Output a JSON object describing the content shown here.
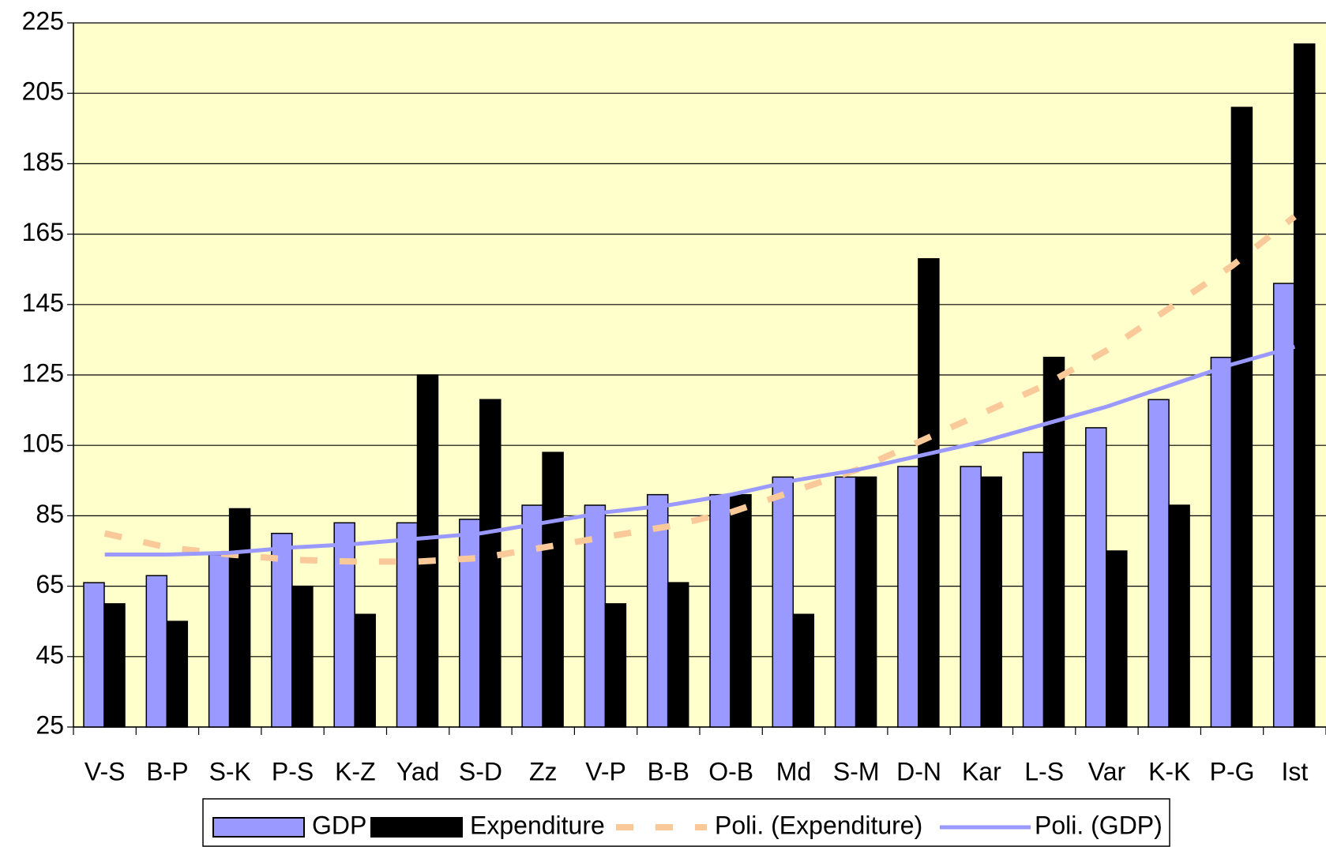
{
  "chart_data": {
    "type": "bar",
    "categories": [
      "V-S",
      "B-P",
      "S-K",
      "P-S",
      "K-Z",
      "Yad",
      "S-D",
      "Zz",
      "V-P",
      "B-B",
      "O-B",
      "Md",
      "S-M",
      "D-N",
      "Kar",
      "L-S",
      "Var",
      "K-K",
      "P-G",
      "Ist"
    ],
    "series": [
      {
        "name": "GDP",
        "type": "bar",
        "color": "#9999ff",
        "values": [
          66,
          68,
          74,
          80,
          83,
          83,
          84,
          88,
          88,
          91,
          91,
          96,
          96,
          99,
          99,
          103,
          110,
          118,
          130,
          151
        ]
      },
      {
        "name": "Expenditure",
        "type": "bar",
        "color": "#000000",
        "values": [
          60,
          55,
          87,
          65,
          57,
          125,
          118,
          103,
          60,
          66,
          91,
          57,
          96,
          158,
          96,
          130,
          75,
          88,
          201,
          219
        ]
      },
      {
        "name": "Poli. (Expenditure)",
        "type": "line",
        "dashed": true,
        "color": "#f9c99a",
        "values": [
          80,
          76,
          74,
          72.5,
          72,
          72,
          73,
          76,
          79,
          82,
          86,
          92,
          98,
          106,
          114,
          122,
          132,
          144,
          156,
          170
        ]
      },
      {
        "name": "Poli. (GDP)",
        "type": "line",
        "dashed": false,
        "color": "#9999ff",
        "values": [
          74,
          74,
          74.5,
          76,
          77,
          78.5,
          80,
          83,
          86,
          88,
          91,
          95,
          98,
          102,
          106,
          111,
          116,
          122,
          128,
          133
        ]
      }
    ],
    "ylim": [
      25,
      225
    ],
    "yticks": [
      25,
      45,
      65,
      85,
      105,
      125,
      145,
      165,
      185,
      205,
      225
    ],
    "grid": true,
    "background": "#ffffcc",
    "legend": "bottom"
  }
}
